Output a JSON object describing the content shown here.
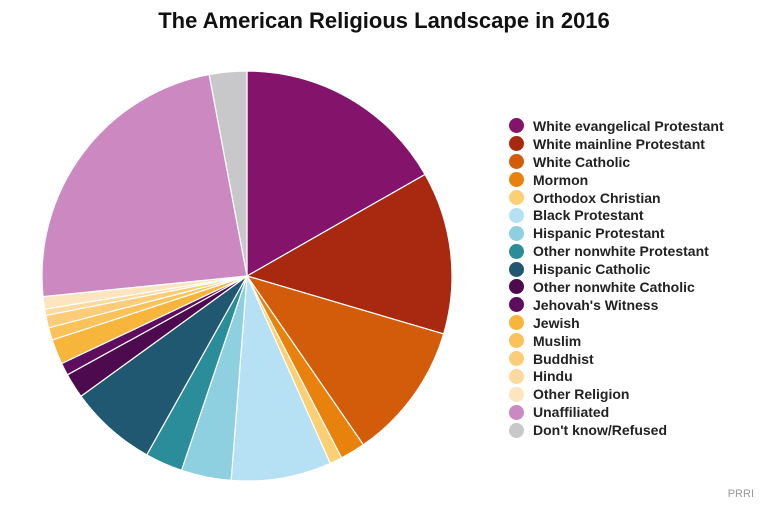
{
  "chart_data": {
    "type": "pie",
    "title": "The American Religious Landscape in 2016",
    "legend_position": "right",
    "slices": [
      {
        "label": "White evangelical Protestant",
        "value": 17,
        "color": "#84136b"
      },
      {
        "label": "White mainline Protestant",
        "value": 13,
        "color": "#a8290f"
      },
      {
        "label": "White Catholic",
        "value": 11,
        "color": "#d35c0b"
      },
      {
        "label": "Mormon",
        "value": 2,
        "color": "#e8820c"
      },
      {
        "label": "Orthodox Christian",
        "value": 1,
        "color": "#fbd074"
      },
      {
        "label": "Black Protestant",
        "value": 8,
        "color": "#b6e0f3"
      },
      {
        "label": "Hispanic Protestant",
        "value": 4,
        "color": "#8ecfe0"
      },
      {
        "label": "Other nonwhite Protestant",
        "value": 3,
        "color": "#2b8c9a"
      },
      {
        "label": "Hispanic Catholic",
        "value": 7,
        "color": "#1f5870"
      },
      {
        "label": "Other nonwhite Catholic",
        "value": 2,
        "color": "#4d0a4f"
      },
      {
        "label": "Jehovah's Witness",
        "value": 1,
        "color": "#5e0c5e"
      },
      {
        "label": "Jewish",
        "value": 2,
        "color": "#f7b53c"
      },
      {
        "label": "Muslim",
        "value": 1,
        "color": "#f9c25a"
      },
      {
        "label": "Buddhist",
        "value": 1,
        "color": "#fbcc7a"
      },
      {
        "label": "Hindu",
        "value": 0.5,
        "color": "#fcd99c"
      },
      {
        "label": "Other Religion",
        "value": 1,
        "color": "#fde6bf"
      },
      {
        "label": "Unaffiliated",
        "value": 24,
        "color": "#cc88c0"
      },
      {
        "label": "Don't know/Refused",
        "value": 3,
        "color": "#c8c8ca"
      }
    ]
  },
  "source": "PRRI"
}
